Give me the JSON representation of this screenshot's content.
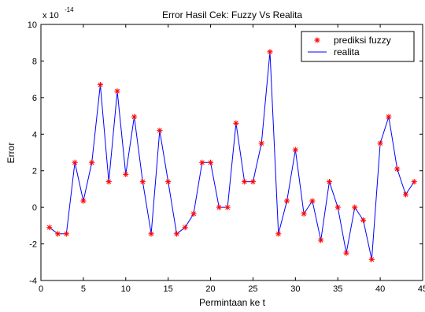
{
  "chart_data": {
    "type": "line",
    "title": "Error Hasil Cek: Fuzzy Vs Realita",
    "xlabel": "Permintaan ke t",
    "ylabel": "Error",
    "y_multiplier": "x 10",
    "y_exponent": "-14",
    "xlim": [
      0,
      45
    ],
    "ylim": [
      -4,
      10
    ],
    "x_ticks": [
      0,
      5,
      10,
      15,
      20,
      25,
      30,
      35,
      40,
      45
    ],
    "y_ticks": [
      -4,
      -2,
      0,
      2,
      4,
      6,
      8,
      10
    ],
    "grid": false,
    "legend_position": "top-right",
    "x": [
      1,
      2,
      3,
      4,
      5,
      6,
      7,
      8,
      9,
      10,
      11,
      12,
      13,
      14,
      15,
      16,
      17,
      18,
      19,
      20,
      21,
      22,
      23,
      24,
      25,
      26,
      27,
      28,
      29,
      30,
      31,
      32,
      33,
      34,
      35,
      36,
      37,
      38,
      39,
      40,
      41,
      42,
      43,
      44
    ],
    "series": [
      {
        "name": "prediksi fuzzy",
        "style": "markers",
        "marker": "*",
        "color": "#ff0000",
        "values": [
          -1.1,
          -1.45,
          -1.45,
          2.45,
          0.35,
          2.45,
          6.7,
          1.4,
          6.35,
          1.8,
          4.95,
          1.4,
          -1.45,
          4.2,
          1.4,
          -1.45,
          -1.1,
          -0.35,
          2.45,
          2.45,
          0,
          0,
          4.6,
          1.4,
          1.4,
          3.5,
          8.5,
          -1.45,
          0.35,
          3.15,
          -0.35,
          0.35,
          -1.8,
          1.4,
          0,
          -2.5,
          0,
          -0.7,
          -2.85,
          3.5,
          4.95,
          2.1,
          0.7,
          1.4
        ]
      },
      {
        "name": "realita",
        "style": "line",
        "color": "#0000ff",
        "values": [
          -1.1,
          -1.45,
          -1.45,
          2.45,
          0.35,
          2.45,
          6.7,
          1.4,
          6.35,
          1.8,
          4.95,
          1.4,
          -1.45,
          4.2,
          1.4,
          -1.45,
          -1.1,
          -0.35,
          2.45,
          2.45,
          0,
          0,
          4.6,
          1.4,
          1.4,
          3.5,
          8.5,
          -1.45,
          0.35,
          3.15,
          -0.35,
          0.35,
          -1.8,
          1.4,
          0,
          -2.5,
          0,
          -0.7,
          -2.85,
          3.5,
          4.95,
          2.1,
          0.7,
          1.4
        ]
      }
    ]
  }
}
